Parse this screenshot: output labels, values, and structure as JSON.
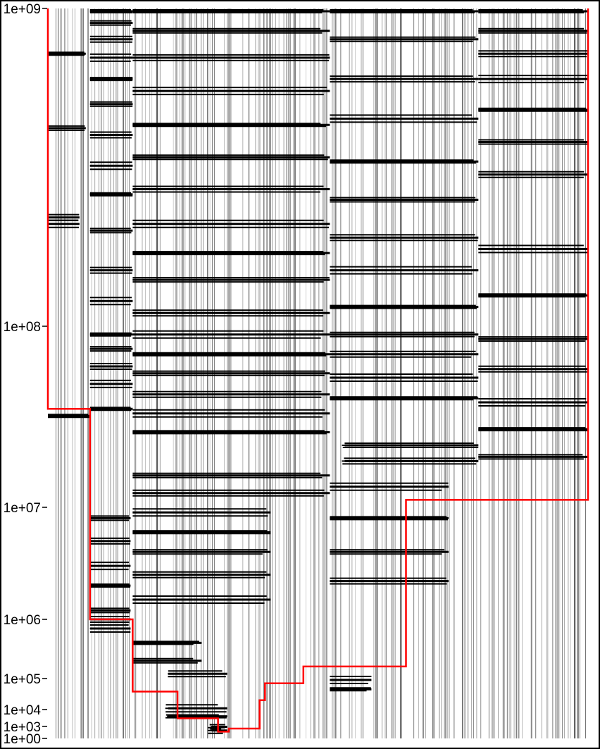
{
  "colors": {
    "background": "#ffffff",
    "frame": "#000000",
    "vlines": "#000000",
    "segments": "#000000",
    "step_line": "#ff0000"
  },
  "chart_data": {
    "type": "line",
    "title": "",
    "xlabel": "",
    "ylabel": "",
    "y_scale": "log-like",
    "ylim": [
      1,
      1000000000
    ],
    "grid": false,
    "legend": "none",
    "y_ticks": [
      {
        "value": 1000000000,
        "label": "1e+09"
      },
      {
        "value": 100000000,
        "label": "1e+08"
      },
      {
        "value": 10000000,
        "label": "1e+07"
      },
      {
        "value": 1000000,
        "label": "1e+06"
      },
      {
        "value": 100000,
        "label": "1e+05"
      },
      {
        "value": 10000,
        "label": "1e+04"
      },
      {
        "value": 1000,
        "label": "1e+03"
      },
      {
        "value": 1,
        "label": "1e+00"
      }
    ],
    "step_series": {
      "name": "",
      "color": "#ff0000",
      "steps": [
        {
          "x_start": 0.0,
          "x_end": 0.078,
          "y": 35000000
        },
        {
          "x_start": 0.078,
          "x_end": 0.157,
          "y": 1000000
        },
        {
          "x_start": 0.157,
          "x_end": 0.24,
          "y": 38000
        },
        {
          "x_start": 0.24,
          "x_end": 0.315,
          "y": 3000
        },
        {
          "x_start": 0.315,
          "x_end": 0.335,
          "y": 50
        },
        {
          "x_start": 0.335,
          "x_end": 0.392,
          "y": 300
        },
        {
          "x_start": 0.392,
          "x_end": 0.402,
          "y": 20000
        },
        {
          "x_start": 0.402,
          "x_end": 0.473,
          "y": 70000
        },
        {
          "x_start": 0.473,
          "x_end": 0.663,
          "y": 160000
        },
        {
          "x_start": 0.663,
          "x_end": 1.0,
          "y": 11000000
        }
      ]
    },
    "groups": [
      {
        "x_start": 0.0,
        "x_end": 0.078,
        "segments": [
          {
            "y": 720000000,
            "x0": 0.0,
            "x1": 0.9
          },
          {
            "y": 420000000,
            "x0": 0.0,
            "x1": 0.9
          },
          {
            "y": 220000000,
            "x0": 0.0,
            "x1": 0.75
          },
          {
            "y": 210000000,
            "x0": 0.0,
            "x1": 0.75
          },
          {
            "y": 32000000,
            "x0": 0.0,
            "x1": 1.0
          }
        ]
      },
      {
        "x_start": 0.078,
        "x_end": 0.157,
        "segments": [
          {
            "y": 980000000,
            "x0": 0.0,
            "x1": 1.0
          },
          {
            "y": 900000000,
            "x0": 0.0,
            "x1": 1.0
          },
          {
            "y": 800000000,
            "x0": 0.0,
            "x1": 1.0
          },
          {
            "y": 700000000,
            "x0": 0.0,
            "x1": 1.0
          },
          {
            "y": 600000000,
            "x0": 0.0,
            "x1": 1.0
          },
          {
            "y": 500000000,
            "x0": 0.0,
            "x1": 1.0
          },
          {
            "y": 400000000,
            "x0": 0.0,
            "x1": 1.0
          },
          {
            "y": 320000000,
            "x0": 0.0,
            "x1": 1.0
          },
          {
            "y": 260000000,
            "x0": 0.0,
            "x1": 1.0
          },
          {
            "y": 200000000,
            "x0": 0.0,
            "x1": 1.0
          },
          {
            "y": 150000000,
            "x0": 0.0,
            "x1": 1.0
          },
          {
            "y": 120000000,
            "x0": 0.0,
            "x1": 1.0
          },
          {
            "y": 90000000,
            "x0": 0.0,
            "x1": 1.0
          },
          {
            "y": 75000000,
            "x0": 0.0,
            "x1": 1.0
          },
          {
            "y": 60000000,
            "x0": 0.0,
            "x1": 1.0
          },
          {
            "y": 48000000,
            "x0": 0.0,
            "x1": 1.0
          },
          {
            "y": 35000000,
            "x0": 0.0,
            "x1": 1.0
          },
          {
            "y": 8000000,
            "x0": 0.0,
            "x1": 0.95
          },
          {
            "y": 5000000,
            "x0": 0.0,
            "x1": 0.95
          },
          {
            "y": 3000000,
            "x0": 0.0,
            "x1": 0.95
          },
          {
            "y": 2000000,
            "x0": 0.0,
            "x1": 0.95
          },
          {
            "y": 1200000,
            "x0": 0.0,
            "x1": 0.95
          },
          {
            "y": 1000000,
            "x0": 0.0,
            "x1": 0.95
          },
          {
            "y": 700000,
            "x0": 0.0,
            "x1": 0.95
          }
        ]
      },
      {
        "x_start": 0.157,
        "x_end": 0.522,
        "segments": [
          {
            "y": 980000000,
            "x0": 0.0,
            "x1": 1.0
          },
          {
            "y": 850000000,
            "x0": 0.0,
            "x1": 1.0
          },
          {
            "y": 700000000,
            "x0": 0.0,
            "x1": 1.0
          },
          {
            "y": 550000000,
            "x0": 0.0,
            "x1": 1.0
          },
          {
            "y": 430000000,
            "x0": 0.0,
            "x1": 1.0
          },
          {
            "y": 340000000,
            "x0": 0.0,
            "x1": 1.0
          },
          {
            "y": 270000000,
            "x0": 0.0,
            "x1": 1.0
          },
          {
            "y": 210000000,
            "x0": 0.0,
            "x1": 1.0
          },
          {
            "y": 170000000,
            "x0": 0.0,
            "x1": 1.0
          },
          {
            "y": 140000000,
            "x0": 0.0,
            "x1": 1.0
          },
          {
            "y": 110000000,
            "x0": 0.0,
            "x1": 1.0
          },
          {
            "y": 90000000,
            "x0": 0.0,
            "x1": 1.0
          },
          {
            "y": 70000000,
            "x0": 0.0,
            "x1": 1.0
          },
          {
            "y": 55000000,
            "x0": 0.0,
            "x1": 1.0
          },
          {
            "y": 42000000,
            "x0": 0.0,
            "x1": 1.0
          },
          {
            "y": 33000000,
            "x0": 0.0,
            "x1": 1.0
          },
          {
            "y": 26000000,
            "x0": 0.0,
            "x1": 1.0
          },
          {
            "y": 15000000,
            "x0": 0.0,
            "x1": 1.0
          },
          {
            "y": 12000000,
            "x0": 0.0,
            "x1": 1.0
          },
          {
            "y": 9000000,
            "x0": 0.0,
            "x1": 0.7
          },
          {
            "y": 6000000,
            "x0": 0.0,
            "x1": 0.7
          },
          {
            "y": 4000000,
            "x0": 0.0,
            "x1": 0.7
          },
          {
            "y": 2500000,
            "x0": 0.0,
            "x1": 0.7
          },
          {
            "y": 1500000,
            "x0": 0.0,
            "x1": 0.7
          },
          {
            "y": 400000,
            "x0": 0.0,
            "x1": 0.35
          },
          {
            "y": 200000,
            "x0": 0.0,
            "x1": 0.35
          },
          {
            "y": 120000,
            "x0": 0.18,
            "x1": 0.48
          },
          {
            "y": 11000,
            "x0": 0.18,
            "x1": 0.48
          },
          {
            "y": 4000,
            "x0": 0.18,
            "x1": 0.48
          },
          {
            "y": 800,
            "x0": 0.4,
            "x1": 0.48
          },
          {
            "y": 100,
            "x0": 0.4,
            "x1": 0.48
          }
        ]
      },
      {
        "x_start": 0.522,
        "x_end": 0.797,
        "segments": [
          {
            "y": 980000000,
            "x0": 0.0,
            "x1": 1.0
          },
          {
            "y": 800000000,
            "x0": 0.0,
            "x1": 1.0
          },
          {
            "y": 600000000,
            "x0": 0.0,
            "x1": 1.0
          },
          {
            "y": 450000000,
            "x0": 0.0,
            "x1": 1.0
          },
          {
            "y": 330000000,
            "x0": 0.0,
            "x1": 1.0
          },
          {
            "y": 250000000,
            "x0": 0.0,
            "x1": 1.0
          },
          {
            "y": 190000000,
            "x0": 0.0,
            "x1": 1.0
          },
          {
            "y": 150000000,
            "x0": 0.0,
            "x1": 1.0
          },
          {
            "y": 115000000,
            "x0": 0.0,
            "x1": 1.0
          },
          {
            "y": 90000000,
            "x0": 0.0,
            "x1": 1.0
          },
          {
            "y": 70000000,
            "x0": 0.0,
            "x1": 1.0
          },
          {
            "y": 52000000,
            "x0": 0.0,
            "x1": 1.0
          },
          {
            "y": 40000000,
            "x0": 0.0,
            "x1": 1.0
          },
          {
            "y": 22000000,
            "x0": 0.1,
            "x1": 1.0
          },
          {
            "y": 18000000,
            "x0": 0.1,
            "x1": 1.0
          },
          {
            "y": 13000000,
            "x0": 0.0,
            "x1": 0.8
          },
          {
            "y": 8000000,
            "x0": 0.0,
            "x1": 0.8
          },
          {
            "y": 4000000,
            "x0": 0.0,
            "x1": 0.8
          },
          {
            "y": 2200000,
            "x0": 0.0,
            "x1": 0.8
          },
          {
            "y": 90000,
            "x0": 0.0,
            "x1": 0.28
          },
          {
            "y": 45000,
            "x0": 0.0,
            "x1": 0.28
          }
        ]
      },
      {
        "x_start": 0.797,
        "x_end": 1.0,
        "segments": [
          {
            "y": 980000000,
            "x0": 0.0,
            "x1": 1.0
          },
          {
            "y": 850000000,
            "x0": 0.0,
            "x1": 1.0
          },
          {
            "y": 720000000,
            "x0": 0.0,
            "x1": 1.0
          },
          {
            "y": 600000000,
            "x0": 0.0,
            "x1": 1.0
          },
          {
            "y": 480000000,
            "x0": 0.0,
            "x1": 1.0
          },
          {
            "y": 380000000,
            "x0": 0.0,
            "x1": 1.0
          },
          {
            "y": 300000000,
            "x0": 0.0,
            "x1": 1.0
          },
          {
            "y": 175000000,
            "x0": 0.0,
            "x1": 1.0
          },
          {
            "y": 125000000,
            "x0": 0.0,
            "x1": 1.0
          },
          {
            "y": 85000000,
            "x0": 0.0,
            "x1": 1.0
          },
          {
            "y": 58000000,
            "x0": 0.0,
            "x1": 1.0
          },
          {
            "y": 38000000,
            "x0": 0.0,
            "x1": 1.0
          },
          {
            "y": 27000000,
            "x0": 0.0,
            "x1": 1.0
          },
          {
            "y": 19000000,
            "x0": 0.0,
            "x1": 1.0
          }
        ]
      }
    ]
  }
}
